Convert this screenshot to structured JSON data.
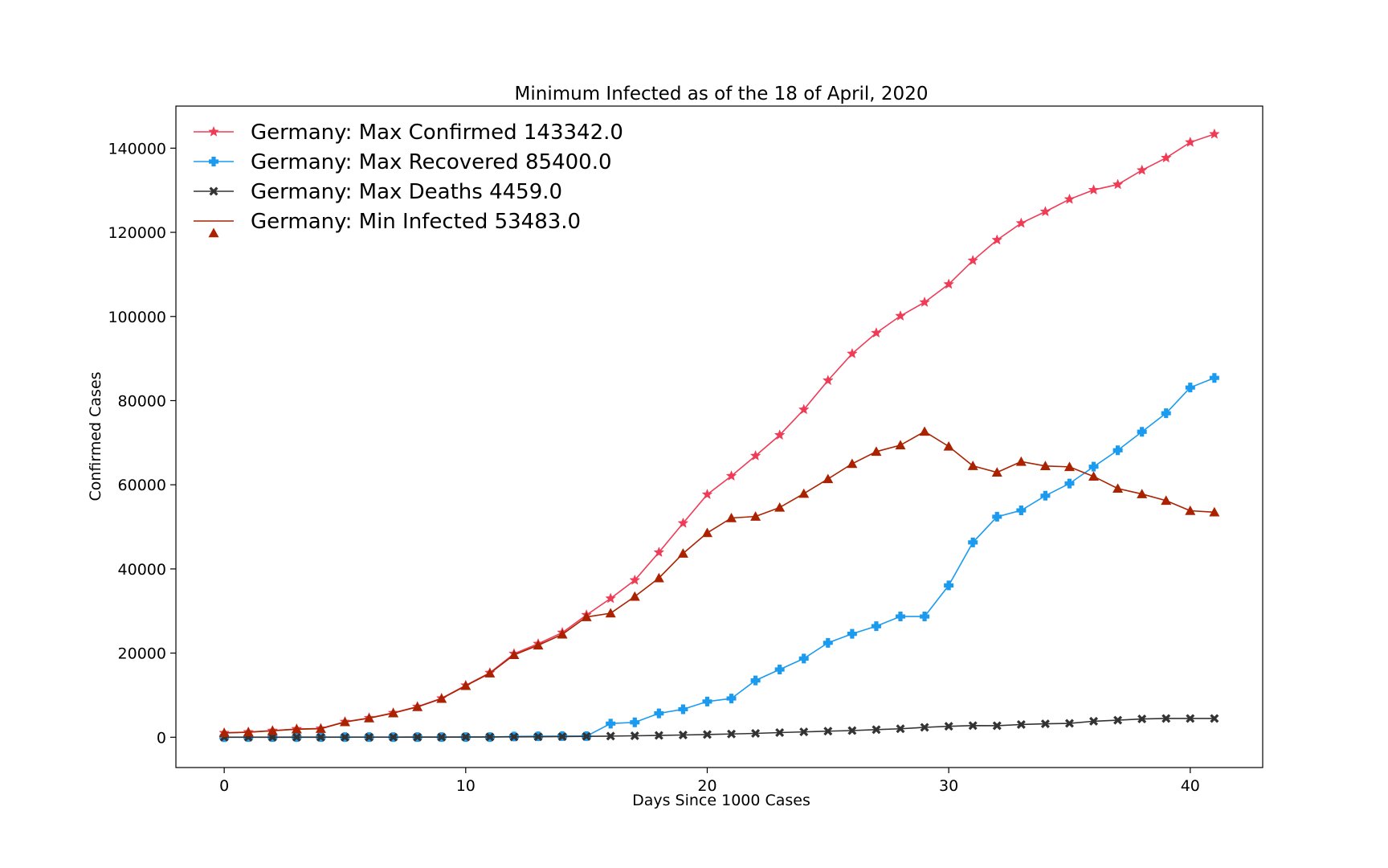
{
  "chart_data": {
    "type": "line",
    "title": "Minimum Infected as of the 18 of April, 2020",
    "xlabel": "Days Since 1000 Cases",
    "ylabel": "Confirmed Cases",
    "xlim": [
      -2,
      43
    ],
    "ylim": [
      -7200,
      150000
    ],
    "xticks": [
      0,
      10,
      20,
      30,
      40
    ],
    "xtick_labels": [
      "0",
      "10",
      "20",
      "30",
      "40"
    ],
    "yticks": [
      0,
      20000,
      40000,
      60000,
      80000,
      100000,
      120000,
      140000
    ],
    "ytick_labels": [
      "0",
      "20000",
      "40000",
      "60000",
      "80000",
      "100000",
      "120000",
      "140000"
    ],
    "grid": false,
    "legend_position": "top-left",
    "x": [
      0,
      1,
      2,
      3,
      4,
      5,
      6,
      7,
      8,
      9,
      10,
      11,
      12,
      13,
      14,
      15,
      16,
      17,
      18,
      19,
      20,
      21,
      22,
      23,
      24,
      25,
      26,
      27,
      28,
      29,
      30,
      31,
      32,
      33,
      34,
      35,
      36,
      37,
      38,
      39,
      40,
      41
    ],
    "series": [
      {
        "name": "Germany: Max Confirmed 143342.0",
        "color": "#ef3b56",
        "marker": "star",
        "values": [
          1040,
          1224,
          1565,
          1966,
          2078,
          3675,
          4585,
          5795,
          7272,
          9257,
          12327,
          15320,
          19848,
          22213,
          24873,
          29056,
          32986,
          37323,
          43938,
          50871,
          57695,
          62095,
          66885,
          71808,
          77872,
          84794,
          91159,
          96092,
          100123,
          103374,
          107663,
          113296,
          118181,
          122171,
          124908,
          127854,
          130072,
          131359,
          134753,
          137698,
          141397,
          143342
        ]
      },
      {
        "name": "Germany: Max Recovered 85400.0",
        "color": "#1a9bf0",
        "marker": "plus",
        "values": [
          18,
          25,
          25,
          46,
          46,
          46,
          46,
          46,
          46,
          46,
          46,
          46,
          180,
          233,
          266,
          266,
          3243,
          3547,
          5673,
          6658,
          8481,
          9211,
          13500,
          16100,
          18700,
          22440,
          24575,
          26400,
          28700,
          28700,
          36081,
          46300,
          52407,
          53913,
          57400,
          60300,
          64300,
          68200,
          72600,
          77000,
          83114,
          85400
        ]
      },
      {
        "name": "Germany: Max Deaths 4459.0",
        "color": "#333333",
        "marker": "x",
        "values": [
          2,
          2,
          3,
          3,
          6,
          8,
          13,
          13,
          20,
          31,
          47,
          68,
          94,
          123,
          157,
          206,
          267,
          342,
          433,
          533,
          645,
          775,
          920,
          1107,
          1275,
          1444,
          1584,
          1810,
          2016,
          2349,
          2607,
          2767,
          2736,
          3022,
          3194,
          3294,
          3804,
          4052,
          4352,
          4459,
          4459,
          4459
        ]
      },
      {
        "name": "Germany: Min Infected 53483.0",
        "color": "#aa2200",
        "marker": "triangle",
        "values": [
          1020,
          1197,
          1537,
          1917,
          2026,
          3621,
          4526,
          5736,
          7206,
          9180,
          12234,
          15206,
          19574,
          21857,
          24450,
          28584,
          29476,
          33434,
          37832,
          43680,
          48569,
          52109,
          52465,
          54601,
          57897,
          61380,
          65000,
          67882,
          69407,
          72650,
          69113,
          64500,
          62946,
          65500,
          64466,
          64260,
          61978,
          59107,
          57801,
          56241,
          53824,
          53483
        ]
      }
    ]
  }
}
